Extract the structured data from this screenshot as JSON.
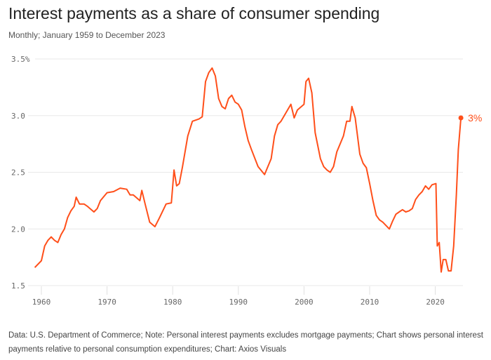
{
  "title": "Interest payments as a share of consumer spending",
  "subtitle": "Monthly; January 1959 to December 2023",
  "footer": "Data: U.S. Department of Commerce; Note: Personal interest payments excludes mortgage payments; Chart shows personal interest payments relative to personal consumption expenditures; Chart: Axios Visuals",
  "chart_data": {
    "type": "line",
    "title": "Interest payments as a share of consumer spending",
    "xlabel": "",
    "ylabel": "",
    "xlim": [
      1959,
      2024
    ],
    "ylim": [
      1.5,
      3.5
    ],
    "grid": true,
    "line_color": "#ff4f1a",
    "x_ticks": [
      1960,
      1970,
      1980,
      1990,
      2000,
      2010,
      2020
    ],
    "x_tick_labels": [
      "1960",
      "1970",
      "1980",
      "1990",
      "2000",
      "2010",
      "2020"
    ],
    "y_ticks": [
      1.5,
      2.0,
      2.5,
      3.0,
      3.5
    ],
    "y_tick_labels": [
      "1.5",
      "2.0",
      "2.5",
      "3.0",
      "3.5%"
    ],
    "end_label": "3%",
    "series": [
      {
        "x": [
          1959.0,
          1960,
          1960.5,
          1961,
          1961.5,
          1962,
          1962.5,
          1963,
          1963.5,
          1964,
          1964.5,
          1965,
          1965.3,
          1965.8,
          1966.5,
          1967,
          1968,
          1968.5,
          1969,
          1970,
          1971,
          1972,
          1973,
          1973.5,
          1974,
          1975,
          1975.3,
          1975.8,
          1976.5,
          1977.3,
          1978,
          1979,
          1979.8,
          1980.2,
          1980.6,
          1981,
          1981.5,
          1982.3,
          1983,
          1984,
          1984.5,
          1985,
          1985.5,
          1986,
          1986.5,
          1987,
          1987.5,
          1988,
          1988.5,
          1989,
          1989.5,
          1990,
          1990.5,
          1991,
          1991.5,
          1992,
          1993,
          1994,
          1994.5,
          1995,
          1995.5,
          1996,
          1996.5,
          1997,
          1998,
          1998.5,
          1999,
          2000,
          2000.3,
          2000.7,
          2001.2,
          2001.7,
          2002.5,
          2003,
          2003.5,
          2004,
          2004.5,
          2005,
          2005.5,
          2006,
          2006.5,
          2007,
          2007.3,
          2007.8,
          2008.5,
          2009,
          2009.5,
          2010,
          2010.5,
          2011,
          2011.5,
          2012,
          2012.5,
          2013,
          2013.5,
          2014,
          2014.5,
          2015,
          2015.5,
          2016,
          2016.5,
          2017,
          2017.5,
          2018,
          2018.5,
          2019,
          2019.5,
          2020.1,
          2020.3,
          2020.6,
          2020.9,
          2021.2,
          2021.6,
          2022.0,
          2022.4,
          2022.8,
          2023.2,
          2023.5,
          2023.9
        ],
        "y": [
          1.66,
          1.72,
          1.85,
          1.9,
          1.93,
          1.9,
          1.88,
          1.95,
          2.0,
          2.1,
          2.16,
          2.2,
          2.28,
          2.22,
          2.22,
          2.2,
          2.15,
          2.18,
          2.25,
          2.32,
          2.33,
          2.36,
          2.35,
          2.3,
          2.3,
          2.25,
          2.34,
          2.22,
          2.06,
          2.02,
          2.1,
          2.22,
          2.23,
          2.52,
          2.38,
          2.4,
          2.55,
          2.82,
          2.95,
          2.97,
          2.99,
          3.3,
          3.38,
          3.42,
          3.35,
          3.15,
          3.08,
          3.06,
          3.15,
          3.18,
          3.12,
          3.1,
          3.05,
          2.9,
          2.78,
          2.7,
          2.55,
          2.48,
          2.55,
          2.62,
          2.82,
          2.92,
          2.95,
          3.0,
          3.1,
          2.98,
          3.05,
          3.1,
          3.3,
          3.33,
          3.2,
          2.85,
          2.62,
          2.55,
          2.52,
          2.5,
          2.55,
          2.68,
          2.75,
          2.82,
          2.95,
          2.95,
          3.08,
          2.98,
          2.66,
          2.58,
          2.54,
          2.4,
          2.25,
          2.12,
          2.08,
          2.06,
          2.03,
          2.0,
          2.07,
          2.13,
          2.15,
          2.17,
          2.15,
          2.16,
          2.18,
          2.26,
          2.3,
          2.33,
          2.38,
          2.35,
          2.39,
          2.4,
          1.85,
          1.88,
          1.62,
          1.73,
          1.73,
          1.63,
          1.63,
          1.85,
          2.3,
          2.7,
          2.98
        ]
      }
    ]
  }
}
